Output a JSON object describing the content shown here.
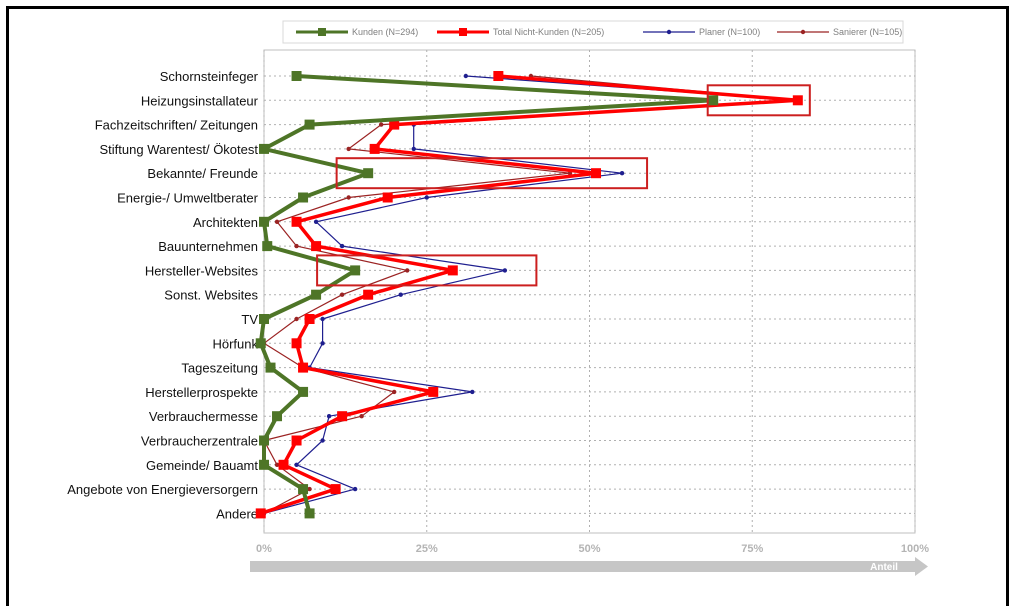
{
  "chart_data": {
    "type": "line",
    "orientation": "horizontal",
    "categories": [
      "Schornsteinfeger",
      "Heizungsinstallateur",
      "Fachzeitschriften/ Zeitungen",
      "Stiftung Warentest/ Ökotest",
      "Bekannte/ Freunde",
      "Energie-/ Umweltberater",
      "Architekten",
      "Bauunternehmen",
      "Hersteller-Websites",
      "Sonst. Websites",
      "TV",
      "Hörfunk",
      "Tageszeitung",
      "Herstellerprospekte",
      "Verbrauchermesse",
      "Verbraucherzentrale",
      "Gemeinde/ Bauamt",
      "Angebote von Energieversorgern",
      "Andere"
    ],
    "x_ticks": [
      "0%",
      "25%",
      "50%",
      "75%",
      "100%"
    ],
    "xlim": [
      0,
      100
    ],
    "xlabel": "Anteil",
    "grid": true,
    "legend_position": "top",
    "series": [
      {
        "name": "Kunden (N=294)",
        "color": "#4e7527",
        "marker": "square-large",
        "values": [
          5,
          69,
          7,
          0,
          16,
          6,
          0,
          0.5,
          14,
          8,
          0,
          -0.5,
          1,
          6,
          2,
          0,
          0,
          6,
          7
        ]
      },
      {
        "name": "Total Nicht-Kunden (N=205)",
        "color": "#ff0000",
        "marker": "square-large",
        "values": [
          36,
          82,
          20,
          17,
          51,
          19,
          5,
          8,
          29,
          16,
          7,
          5,
          6,
          26,
          12,
          5,
          3,
          11,
          -0.5
        ]
      },
      {
        "name": "Planer (N=100)",
        "color": "#1f1f8f",
        "marker": "circle-small",
        "values": [
          31,
          82,
          23,
          23,
          55,
          25,
          8,
          12,
          37,
          21,
          9,
          9,
          7,
          32,
          10,
          9,
          5,
          14,
          0
        ]
      },
      {
        "name": "Sanierer (N=105)",
        "color": "#9b2323",
        "marker": "circle-small",
        "values": [
          41,
          82,
          18,
          13,
          47,
          13,
          2,
          5,
          22,
          12,
          5,
          0,
          6,
          20,
          15,
          0,
          2,
          7,
          0
        ]
      }
    ],
    "highlight_boxes": [
      {
        "category": "Heizungsinstallateur",
        "x_range": [
          70,
          82
        ]
      },
      {
        "category": "Bekannte/ Freunde",
        "x_range": [
          13,
          57
        ]
      },
      {
        "category": "Hersteller-Websites",
        "x_range": [
          10,
          40
        ]
      }
    ]
  }
}
